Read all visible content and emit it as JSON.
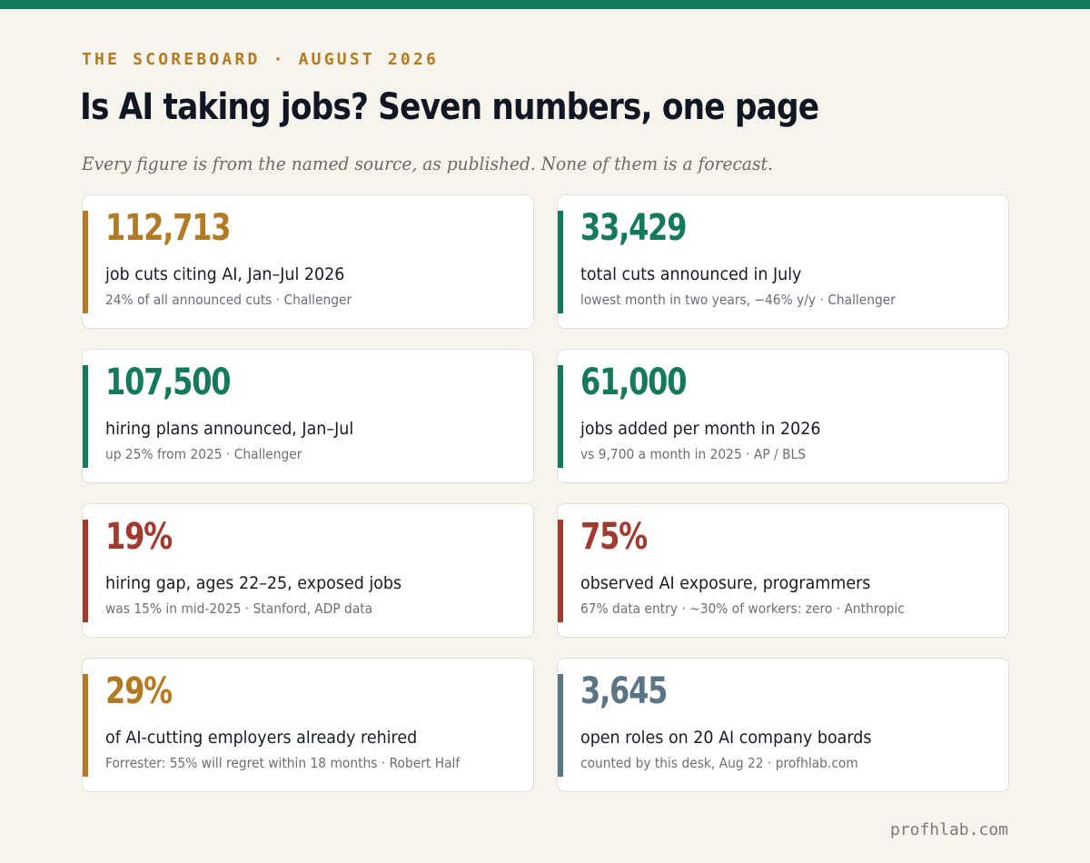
{
  "kicker": "THE SCOREBOARD · AUGUST 2026",
  "title": "Is AI taking jobs? Seven numbers, one page",
  "subtitle": "Every figure is from the named source, as published. None of them is a forecast.",
  "colors": {
    "brand_green": "#15795b",
    "amber": "#b27a22",
    "green": "#15795b",
    "red": "#a33a2f",
    "slate": "#5a7684",
    "background": "#f7f4ed"
  },
  "cards": [
    {
      "value": "112,713",
      "label": "job cuts citing AI, Jan–Jul 2026",
      "note": "24% of all announced cuts · Challenger",
      "color": "#b27a22"
    },
    {
      "value": "33,429",
      "label": "total cuts announced in July",
      "note": "lowest month in two years, −46% y/y · Challenger",
      "color": "#15795b"
    },
    {
      "value": "107,500",
      "label": "hiring plans announced, Jan–Jul",
      "note": "up 25% from 2025 · Challenger",
      "color": "#15795b"
    },
    {
      "value": "61,000",
      "label": "jobs added per month in 2026",
      "note": "vs 9,700 a month in 2025 · AP / BLS",
      "color": "#15795b"
    },
    {
      "value": "19%",
      "label": "hiring gap, ages 22–25, exposed jobs",
      "note": "was 15% in mid-2025 · Stanford, ADP data",
      "color": "#a33a2f"
    },
    {
      "value": "75%",
      "label": "observed AI exposure, programmers",
      "note": "67% data entry · ~30% of workers: zero · Anthropic",
      "color": "#a33a2f"
    },
    {
      "value": "29%",
      "label": "of AI-cutting employers already rehired",
      "note": "Forrester: 55% will regret within 18 months · Robert Half",
      "color": "#b27a22"
    },
    {
      "value": "3,645",
      "label": "open roles on 20 AI company boards",
      "note": "counted by this desk, Aug 22 · profhlab.com",
      "color": "#5a7684"
    }
  ],
  "footer": "profhlab.com"
}
